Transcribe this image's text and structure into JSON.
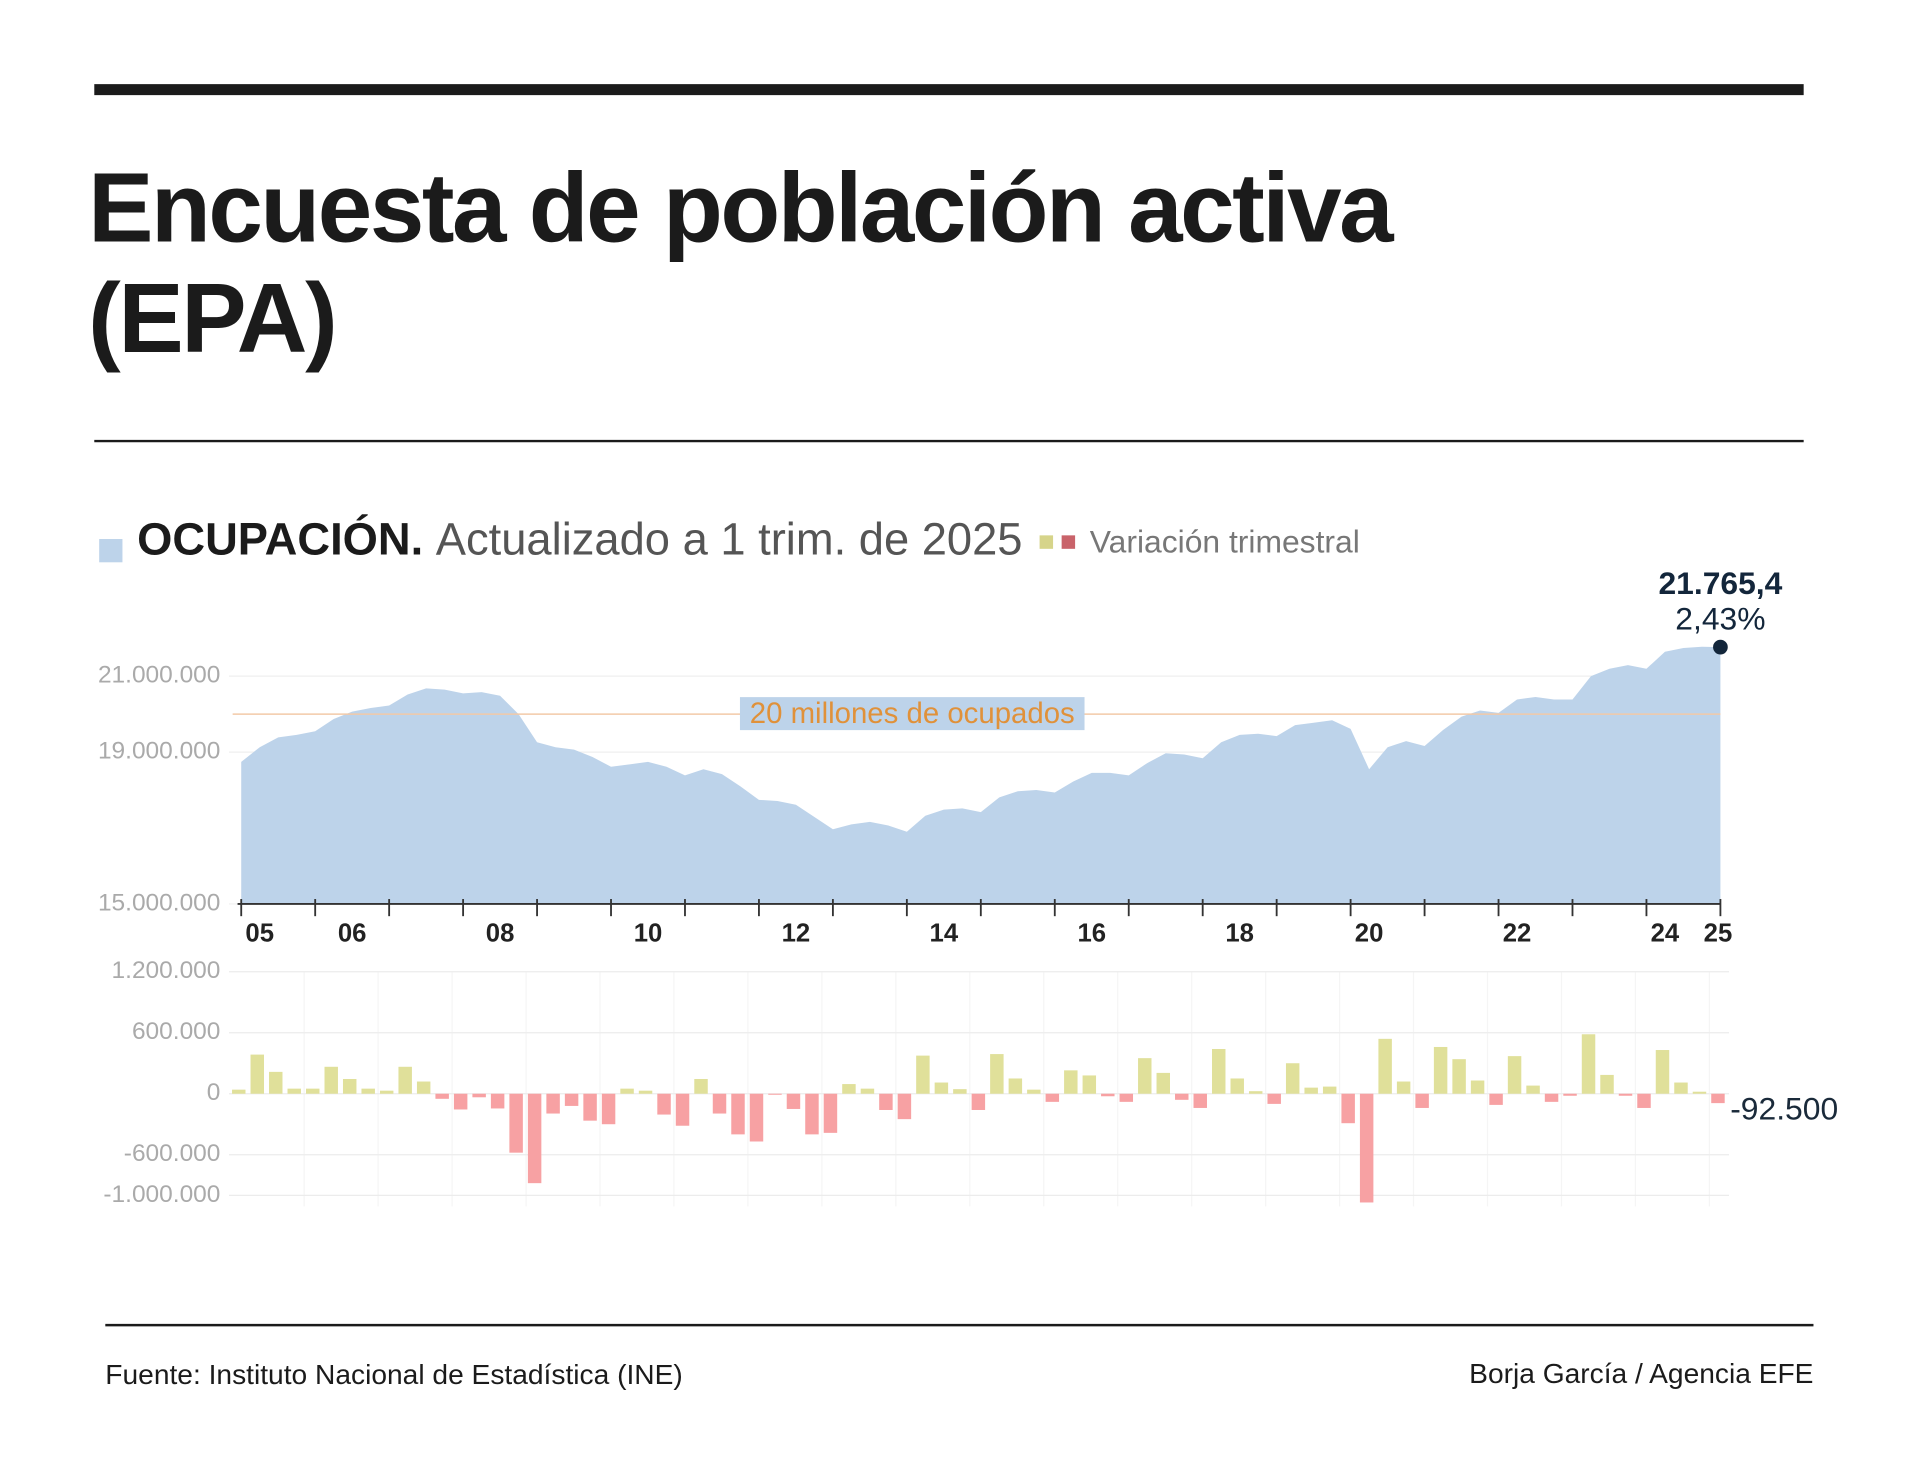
{
  "title": [
    "Encuesta de población activa",
    "(EPA)"
  ],
  "source": "Fuente: Instituto Nacional de Estadística (INE)",
  "credit": "Borja García / Agencia EFE",
  "chart_data": [
    {
      "type": "area",
      "name": "OCUPACIÓN.",
      "subtitle": "Actualizado a 1 trim. de 2025",
      "color": "#bdd3ea",
      "categories": [
        null,
        "05",
        null,
        null,
        null,
        null,
        "06",
        null,
        null,
        null,
        null,
        null,
        null,
        null,
        "08",
        null,
        null,
        null,
        null,
        null,
        null,
        null,
        "10",
        null,
        null,
        null,
        null,
        null,
        null,
        null,
        "12",
        null,
        null,
        null,
        null,
        null,
        null,
        null,
        "14",
        null,
        null,
        null,
        null,
        null,
        null,
        null,
        "16",
        null,
        null,
        null,
        null,
        null,
        null,
        null,
        "18",
        null,
        null,
        null,
        null,
        null,
        null,
        "20",
        null,
        null,
        null,
        null,
        null,
        null,
        null,
        "22",
        null,
        null,
        null,
        null,
        null,
        null,
        null,
        "24",
        null,
        null,
        "25"
      ],
      "values": [
        18742000,
        19129000,
        19387000,
        19452000,
        19548000,
        19871000,
        20065000,
        20161000,
        20226000,
        20516000,
        20677000,
        20645000,
        20548000,
        20581000,
        20484000,
        20000000,
        19258000,
        19129000,
        19065000,
        18871000,
        18613000,
        18677000,
        18742000,
        18613000,
        18387000,
        18548000,
        18419000,
        18097000,
        17742000,
        17710000,
        17613000,
        17290000,
        16968000,
        17097000,
        17161000,
        17065000,
        16903000,
        17323000,
        17484000,
        17516000,
        17419000,
        17806000,
        17968000,
        18000000,
        17935000,
        18226000,
        18452000,
        18452000,
        18387000,
        18710000,
        18968000,
        18935000,
        18839000,
        19258000,
        19452000,
        19484000,
        19419000,
        19710000,
        19774000,
        19839000,
        19613000,
        18548000,
        19129000,
        19290000,
        19161000,
        19581000,
        19935000,
        20097000,
        20032000,
        20387000,
        20452000,
        20387000,
        20387000,
        21000000,
        21194000,
        21290000,
        21194000,
        21645000,
        21742000,
        21774000,
        21765400
      ],
      "ylim": [
        15000000,
        22000000
      ],
      "yticks": [
        {
          "value": 15000000,
          "label": "15.000.000"
        },
        {
          "value": 19000000,
          "label": "19.000.000"
        },
        {
          "value": 21000000,
          "label": "21.000.000"
        }
      ],
      "reference": {
        "value": 20000000,
        "label": "20 millones de ocupados",
        "color": "#f2c9a8"
      },
      "annotation": {
        "label": "21.765,4",
        "note": "2,43%",
        "color": "#13263b"
      }
    },
    {
      "type": "bar",
      "name": "Variación trimestral",
      "positive_color": "#e0e09a",
      "negative_color": "#f7a1a3",
      "legend_colors": [
        "#d6d48a",
        "#c9636a"
      ],
      "values": [
        40000,
        385000,
        215000,
        50000,
        50000,
        265000,
        145000,
        50000,
        30000,
        265000,
        120000,
        -50000,
        -155000,
        -35000,
        -145000,
        -580000,
        -880000,
        -195000,
        -120000,
        -265000,
        -300000,
        50000,
        30000,
        -205000,
        -315000,
        145000,
        -195000,
        -400000,
        -470000,
        -10000,
        -150000,
        -400000,
        -385000,
        95000,
        50000,
        -160000,
        -250000,
        375000,
        110000,
        45000,
        -160000,
        390000,
        150000,
        40000,
        -80000,
        230000,
        180000,
        -25000,
        -80000,
        350000,
        205000,
        -60000,
        -140000,
        440000,
        150000,
        25000,
        -100000,
        300000,
        60000,
        70000,
        -290000,
        -1070000,
        540000,
        120000,
        -140000,
        460000,
        340000,
        130000,
        -110000,
        370000,
        80000,
        -80000,
        -20000,
        585000,
        185000,
        -20000,
        -140000,
        430000,
        110000,
        20000,
        -92500
      ],
      "value_labels": [
        null,
        null,
        null,
        null,
        null,
        null,
        null,
        null,
        null,
        null,
        null,
        null,
        null,
        null,
        null,
        null,
        null,
        null,
        null,
        null,
        null,
        null,
        null,
        null,
        null,
        null,
        null,
        null,
        null,
        null,
        null,
        null,
        null,
        null,
        null,
        null,
        null,
        null,
        null,
        null,
        null,
        null,
        null,
        null,
        null,
        null,
        null,
        null,
        null,
        null,
        null,
        null,
        null,
        null,
        null,
        null,
        null,
        null,
        null,
        null,
        null,
        null,
        null,
        null,
        null,
        null,
        null,
        null,
        null,
        null,
        null,
        null,
        null,
        null,
        null,
        null,
        null,
        null,
        null,
        null,
        "-92.500"
      ],
      "ylim": [
        -1300000,
        1200000
      ],
      "yticks": [
        {
          "value": -1000000,
          "label": "-1.000.000"
        },
        {
          "value": -600000,
          "label": "-600.000"
        },
        0,
        {
          "value": 600000,
          "label": "600.000"
        },
        {
          "value": 1200000,
          "label": "1.200.000"
        }
      ],
      "grid": true
    }
  ]
}
